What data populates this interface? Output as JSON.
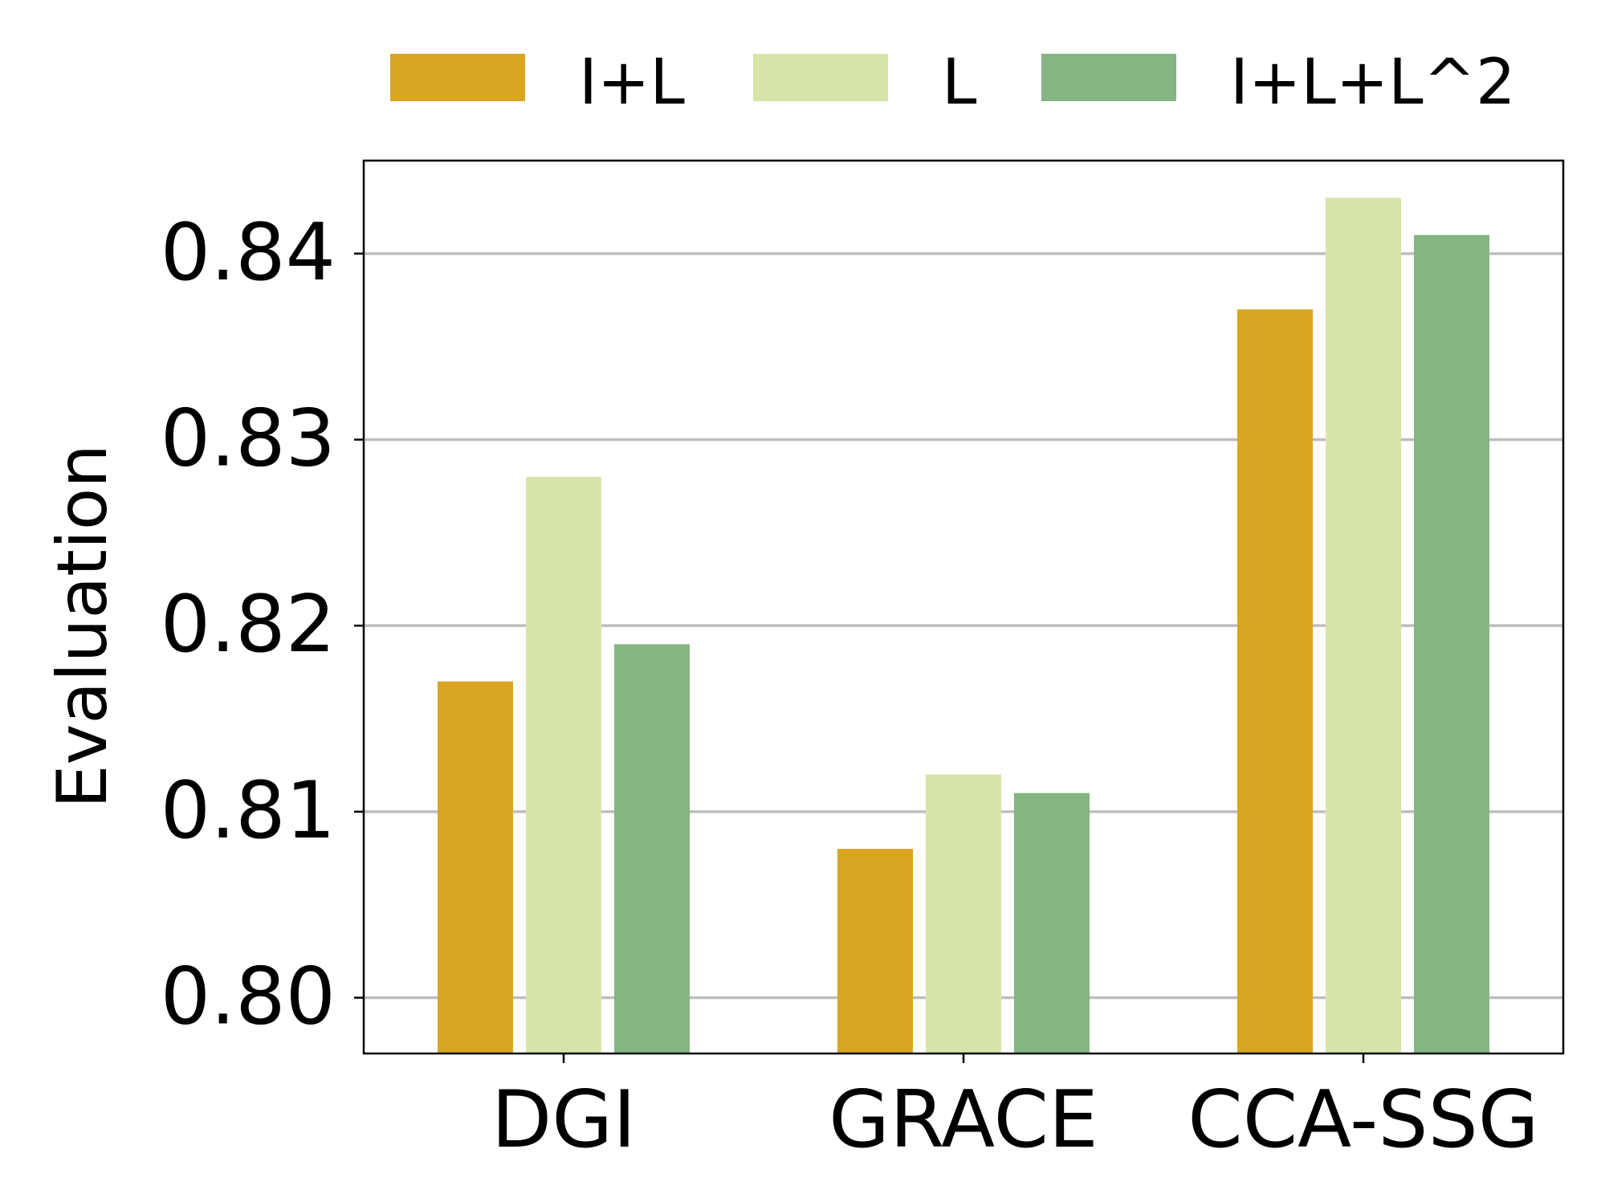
{
  "chart_data": {
    "type": "bar",
    "title": "",
    "xlabel": "",
    "ylabel": "Evaluation",
    "categories": [
      "DGI",
      "GRACE",
      "CCA-SSG"
    ],
    "series": [
      {
        "name": "I+L",
        "color": "#DAA520",
        "values": [
          0.817,
          0.808,
          0.837
        ]
      },
      {
        "name": "L",
        "color": "#D7E5A9",
        "values": [
          0.828,
          0.812,
          0.843
        ]
      },
      {
        "name": "I+L+L^2",
        "color": "#84B582",
        "values": [
          0.819,
          0.811,
          0.841
        ]
      }
    ],
    "ylim": [
      0.797,
      0.845
    ],
    "yticks": [
      0.8,
      0.81,
      0.82,
      0.83,
      0.84
    ],
    "ytick_labels": [
      "0.80",
      "0.81",
      "0.82",
      "0.83",
      "0.84"
    ],
    "grid": "horizontal",
    "grid_color": "#BEBEBE",
    "legend_position": "top"
  }
}
